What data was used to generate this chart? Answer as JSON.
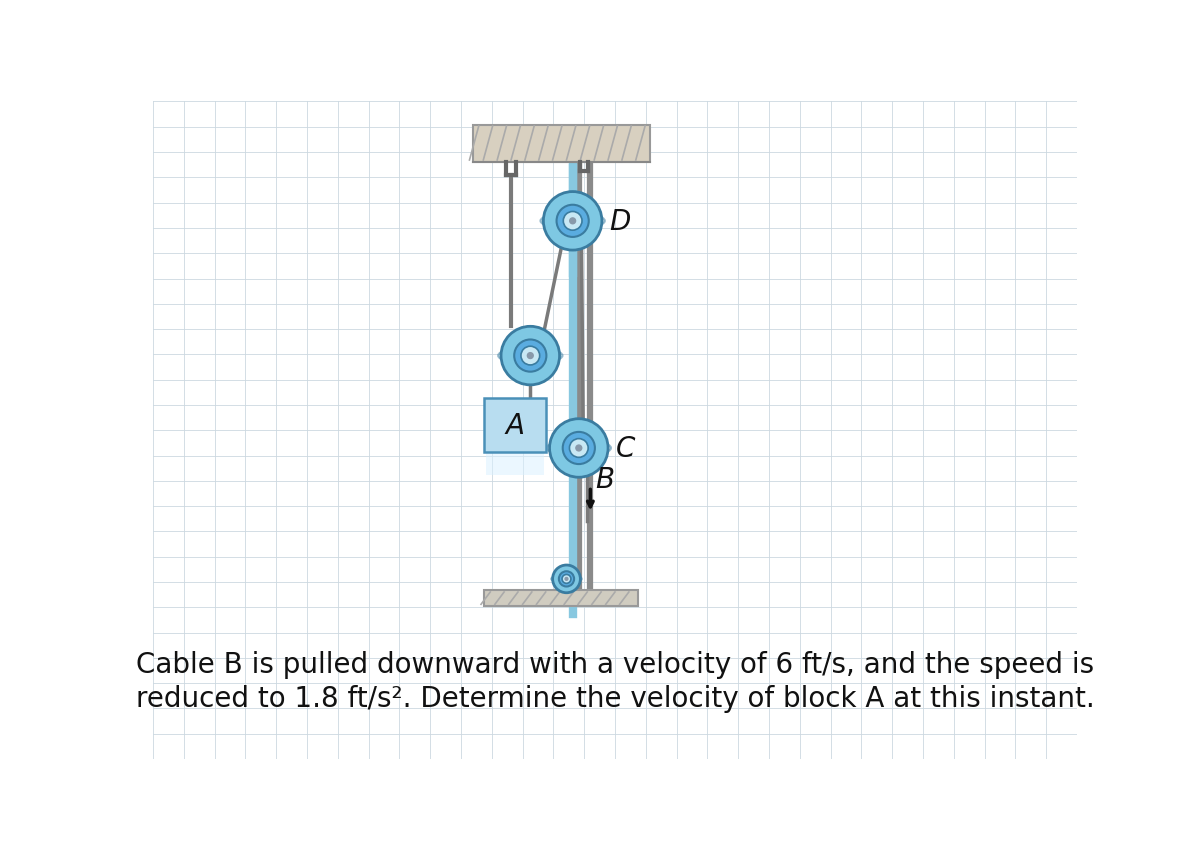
{
  "white_bg": "#ffffff",
  "grid_color": "#ccd8e0",
  "pulley_outer": "#7ec8e3",
  "pulley_mid": "#5aace0",
  "pulley_inner": "#c8e8f4",
  "pulley_edge": "#3a7ca0",
  "pulley_hub": "#8899aa",
  "cable_color": "#7a7a7a",
  "rod_color": "#8a8a8a",
  "block_face": "#b8ddf0",
  "block_edge": "#4a90b8",
  "block_glow": "#e0f4ff",
  "ceil_face": "#d8d0c0",
  "ceil_edge": "#999999",
  "floor_face": "#d0ccc0",
  "floor_edge": "#999999",
  "hook_color": "#666666",
  "text_color": "#111111",
  "arrow_color": "#111111",
  "label_text_line1": "Cable B is pulled downward with a velocity of 6 ft/s, and the speed is",
  "label_text_line2": "reduced to 1.8 ft/s². Determine the velocity of block A at this instant.",
  "label_fontsize": 20,
  "figsize": [
    12.0,
    8.54
  ],
  "dpi": 100,
  "note_D": "D",
  "note_C": "C",
  "note_B": "B",
  "note_A": "A"
}
